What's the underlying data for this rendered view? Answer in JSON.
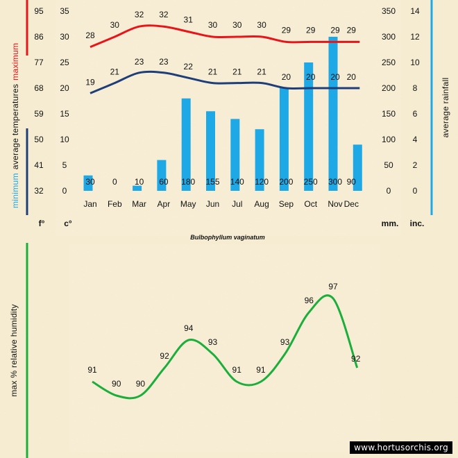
{
  "chart_data": [
    {
      "type": "bar+line",
      "title": "Bulbophyllum vaginatum",
      "months": [
        "Jan",
        "Feb",
        "Mar",
        "Apr",
        "May",
        "Jun",
        "Jul",
        "Aug",
        "Sep",
        "Oct",
        "Nov",
        "Dec"
      ],
      "rainfall_mm": [
        30,
        0,
        10,
        60,
        180,
        155,
        140,
        120,
        200,
        250,
        300,
        90
      ],
      "max_temp_c": [
        28,
        30,
        32,
        32,
        31,
        30,
        30,
        30,
        29,
        29,
        29,
        29
      ],
      "min_temp_c": [
        19,
        21,
        23,
        23,
        22,
        21,
        21,
        21,
        20,
        20,
        20,
        20
      ],
      "celsius_ticks": [
        "0",
        "5",
        "10",
        "15",
        "20",
        "25",
        "30",
        "35"
      ],
      "fahrenheit_ticks": [
        "32",
        "41",
        "50",
        "59",
        "68",
        "77",
        "86",
        "95"
      ],
      "mm_ticks": [
        "0",
        "50",
        "100",
        "150",
        "200",
        "250",
        "300",
        "350"
      ],
      "inch_ticks": [
        "0",
        "2",
        "4",
        "6",
        "8",
        "10",
        "12",
        "14"
      ],
      "ylim_c": [
        0,
        35
      ],
      "ylim_mm": [
        0,
        350
      ],
      "unit_f": "f°",
      "unit_c": "c°",
      "unit_mm": "mm.",
      "unit_in": "inc.",
      "label_maximum": "maximum",
      "label_average_temperatures": "average temperatures",
      "label_minimum": "minimum",
      "label_average_rainfall": "average rainfall",
      "colors": {
        "max": "#e8141a",
        "min": "#1e3e7a",
        "bar": "#1fa8e6",
        "rain_axis": "#1fa8e6",
        "red_axis": "#e8141a",
        "navy_axis": "#1e3e7a"
      }
    },
    {
      "type": "line",
      "ylabel": "max % relative humidity",
      "values": [
        91,
        90,
        90,
        92,
        94,
        93,
        91,
        91,
        93,
        96,
        97,
        92
      ],
      "labels": [
        "91",
        "90",
        "90",
        "92",
        "94",
        "93",
        "91",
        "91",
        "93",
        "96",
        "97",
        "92"
      ],
      "color": "#1cae3c",
      "axis_color": "#1cae3c"
    }
  ],
  "watermark": "www.hortusorchis.org"
}
